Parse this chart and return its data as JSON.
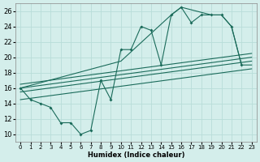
{
  "xlabel": "Humidex (Indice chaleur)",
  "bg_color": "#d4eeeb",
  "grid_color": "#b8ddd9",
  "line_color": "#1a6b5a",
  "xlim": [
    -0.5,
    23.5
  ],
  "ylim": [
    9,
    27
  ],
  "xticks": [
    0,
    1,
    2,
    3,
    4,
    5,
    6,
    7,
    8,
    9,
    10,
    11,
    12,
    13,
    14,
    15,
    16,
    17,
    18,
    19,
    20,
    21,
    22,
    23
  ],
  "yticks": [
    10,
    12,
    14,
    16,
    18,
    20,
    22,
    24,
    26
  ],
  "zigzag_x": [
    0,
    1,
    2,
    3,
    4,
    5,
    6,
    7,
    8,
    9,
    10,
    11,
    12,
    13,
    14,
    15,
    16,
    17,
    18,
    19,
    20,
    21,
    22
  ],
  "zigzag_y": [
    16,
    14.5,
    14,
    13.5,
    11.5,
    11.5,
    10,
    10.5,
    17,
    14.5,
    21,
    21,
    24,
    23.5,
    19,
    25.5,
    26.5,
    24.5,
    25.5,
    25.5,
    25.5,
    24,
    19
  ],
  "upper_x": [
    0,
    10,
    15,
    16,
    19,
    20,
    21,
    22,
    23
  ],
  "upper_y": [
    16,
    19.5,
    25.5,
    26.5,
    25.5,
    25.5,
    24,
    19,
    19
  ],
  "diag_lines": [
    {
      "x0": 0,
      "y0": 14.5,
      "x1": 23,
      "y1": 18.5
    },
    {
      "x0": 0,
      "y0": 15.5,
      "x1": 23,
      "y1": 19.5
    },
    {
      "x0": 0,
      "y0": 16.0,
      "x1": 23,
      "y1": 20.0
    },
    {
      "x0": 0,
      "y0": 16.5,
      "x1": 23,
      "y1": 20.5
    }
  ]
}
